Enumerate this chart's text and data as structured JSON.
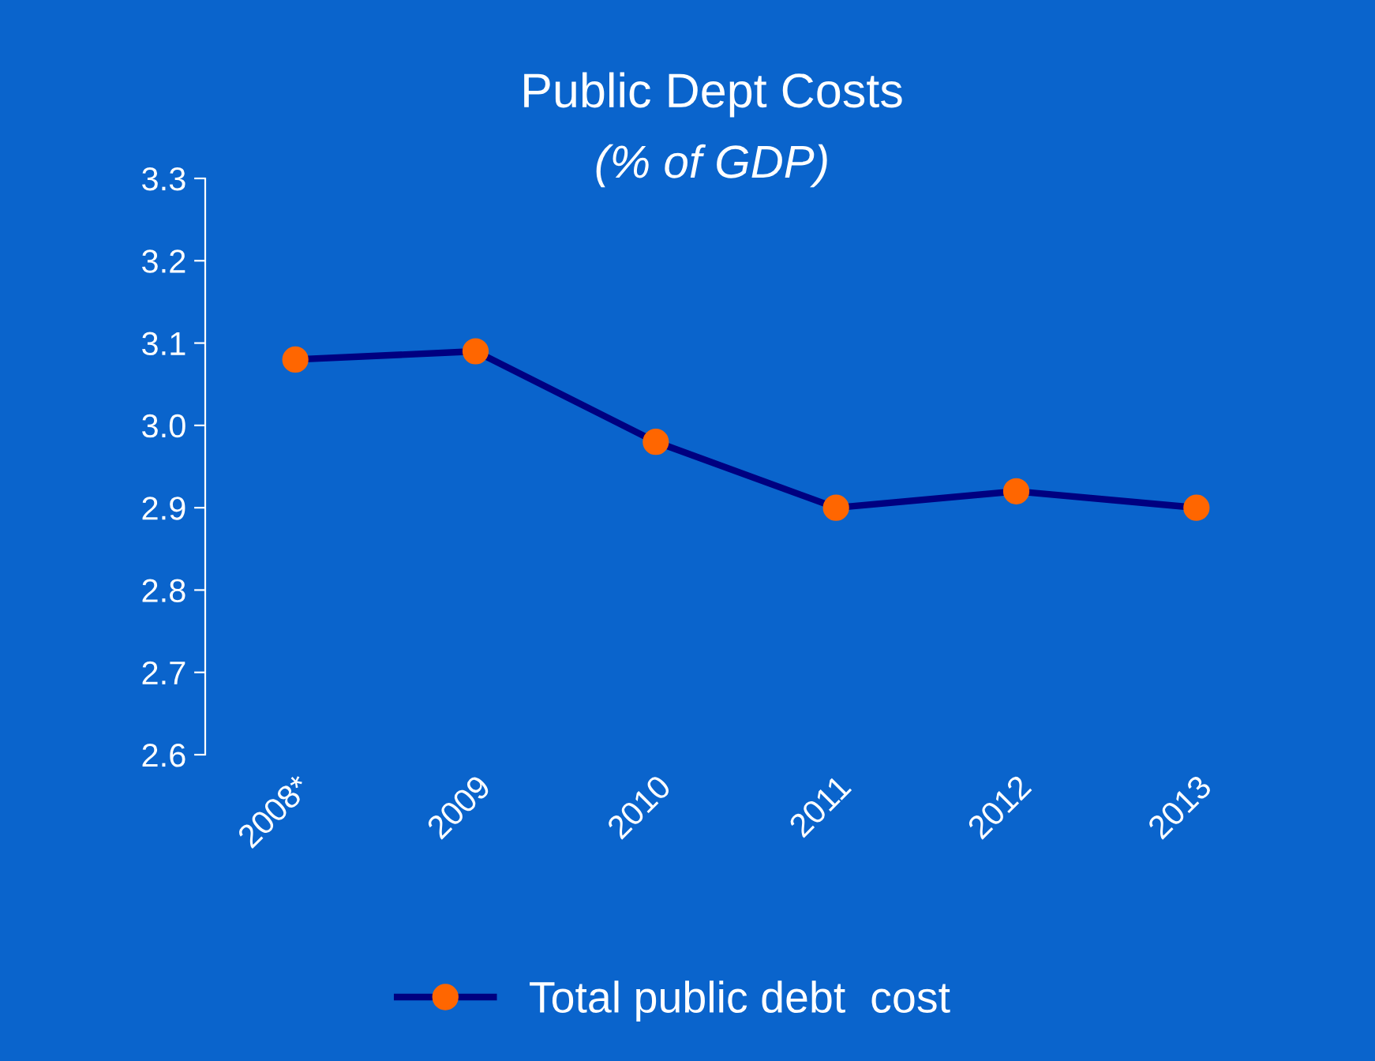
{
  "chart_data": {
    "type": "line",
    "title": "Public Dept Costs",
    "subtitle": "(% of GDP)",
    "categories": [
      "2008*",
      "2009",
      "2010",
      "2011",
      "2012",
      "2013"
    ],
    "series": [
      {
        "name": "Total public debt  cost",
        "color": "#000080",
        "colors": [
          "#ff6600",
          "#ff6600",
          "#ff6600",
          "#ff6600",
          "#ff6600",
          "#ff6600"
        ],
        "values": [
          3.08,
          3.09,
          2.98,
          2.9,
          2.92,
          2.9
        ]
      }
    ],
    "ylim": [
      2.6,
      3.3
    ],
    "yticks": [
      {
        "value": 2.6,
        "label": "2.6"
      },
      {
        "value": 2.7,
        "label": "2.7"
      },
      {
        "value": 2.8,
        "label": "2.8"
      },
      {
        "value": 2.9,
        "label": "2.9"
      },
      {
        "value": 3.0,
        "label": "3.0"
      },
      {
        "value": 3.1,
        "label": "3.1"
      },
      {
        "value": 3.2,
        "label": "3.2"
      },
      {
        "value": 3.3,
        "label": "3.3"
      }
    ],
    "marker": "circle",
    "line_style": "solid",
    "grid": false,
    "legend": "bottom"
  }
}
